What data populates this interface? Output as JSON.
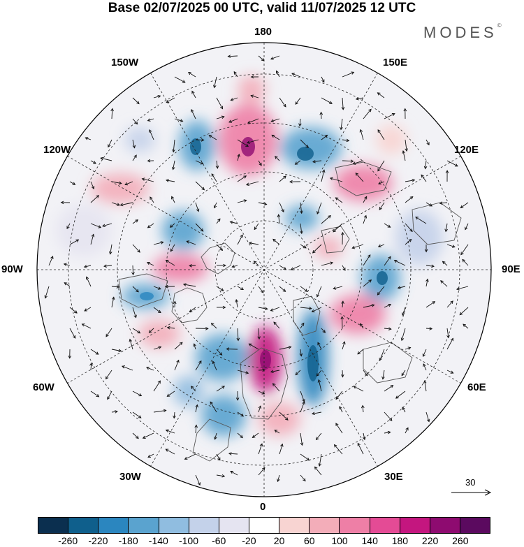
{
  "title": "Base 02/07/2025 00 UTC, valid 11/07/2025 12 UTC",
  "brand": {
    "text": "MODES",
    "mark": "©"
  },
  "longitude_labels": {
    "top": "180",
    "bottom": "0",
    "left": "90W",
    "right": "90E",
    "upper_left_1": "150W",
    "upper_left_2": "120W",
    "upper_right_1": "150E",
    "upper_right_2": "120E",
    "lower_left_1": "60W",
    "lower_left_2": "30W",
    "lower_right_1": "60E",
    "lower_right_2": "30E"
  },
  "vector_scale": {
    "label": "30"
  },
  "colorbar": {
    "colors": [
      "#0b2f4f",
      "#0f5f8c",
      "#2b86bf",
      "#5aa3cf",
      "#90bde0",
      "#c4d2ea",
      "#e5e4f1",
      "#ffffff",
      "#f8d4d2",
      "#f3adb9",
      "#ee7fa6",
      "#e44b95",
      "#c4167f",
      "#8e0b70",
      "#5b0a5f"
    ],
    "ticks": [
      "-260",
      "-220",
      "-180",
      "-140",
      "-100",
      "-60",
      "-20",
      "20",
      "60",
      "100",
      "140",
      "180",
      "220",
      "260"
    ]
  }
}
